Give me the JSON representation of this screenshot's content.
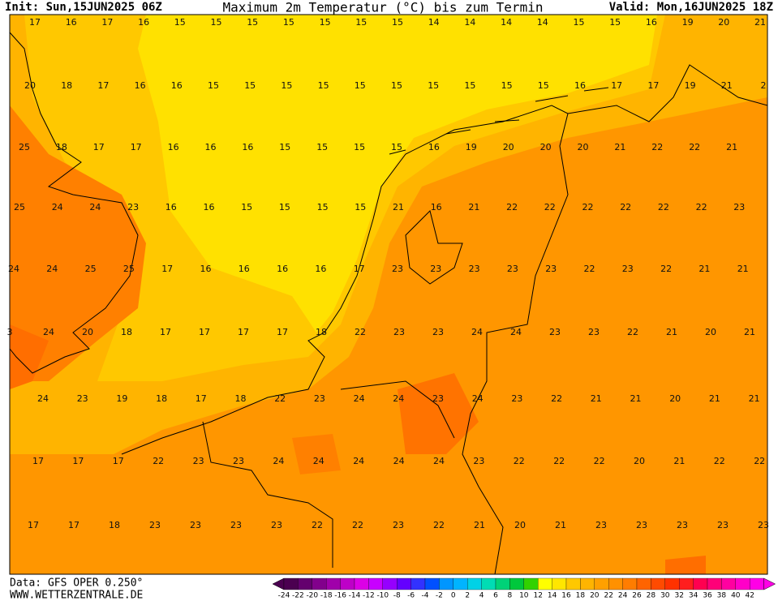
{
  "header": {
    "init": "Init: Sun,15JUN2025 06Z",
    "title": "Maximum 2m Temperatur (°C) bis zum Termin",
    "valid": "Valid: Mon,16JUN2025 18Z"
  },
  "footer": {
    "data": "Data: GFS OPER 0.250°",
    "site": "WWW.WETTERZENTRALE.DE"
  },
  "grid_values": [
    [
      17,
      16,
      17,
      16,
      15,
      15,
      15,
      15,
      15,
      15,
      15,
      14,
      14,
      14,
      14,
      15,
      15,
      16,
      19,
      20,
      21
    ],
    [
      20,
      18,
      17,
      16,
      16,
      15,
      15,
      15,
      15,
      15,
      15,
      15,
      15,
      15,
      15,
      16,
      17,
      17,
      19,
      21,
      2
    ],
    [
      25,
      18,
      17,
      17,
      16,
      16,
      16,
      15,
      15,
      15,
      15,
      16,
      19,
      20,
      20,
      20,
      21,
      22,
      22,
      21
    ],
    [
      25,
      24,
      24,
      23,
      16,
      16,
      15,
      15,
      15,
      15,
      21,
      16,
      21,
      22,
      22,
      22,
      22,
      22,
      22,
      23
    ],
    [
      24,
      24,
      25,
      25,
      17,
      16,
      16,
      16,
      16,
      17,
      23,
      23,
      23,
      23,
      23,
      22,
      23,
      22,
      21,
      21
    ],
    [
      3,
      24,
      20,
      18,
      17,
      17,
      17,
      17,
      18,
      22,
      23,
      23,
      24,
      24,
      23,
      23,
      22,
      21,
      20,
      21
    ],
    [
      24,
      23,
      19,
      18,
      17,
      18,
      22,
      23,
      24,
      24,
      23,
      24,
      23,
      22,
      21,
      21,
      20,
      21,
      21
    ],
    [
      17,
      17,
      17,
      22,
      23,
      23,
      24,
      24,
      24,
      24,
      24,
      23,
      22,
      22,
      22,
      20,
      21,
      22,
      22
    ],
    [
      17,
      17,
      18,
      23,
      23,
      23,
      23,
      22,
      22,
      23,
      22,
      21,
      20,
      21,
      23,
      23,
      23,
      23,
      23
    ]
  ],
  "colorbar": {
    "ticks": [
      -24,
      -22,
      -20,
      -18,
      -16,
      -14,
      -12,
      -10,
      -8,
      -6,
      -4,
      -2,
      0,
      2,
      4,
      6,
      8,
      10,
      12,
      14,
      16,
      18,
      20,
      22,
      24,
      26,
      28,
      30,
      32,
      34,
      36,
      38,
      40,
      42
    ],
    "colors": [
      "#4b0050",
      "#64006e",
      "#82008c",
      "#a000aa",
      "#be00c8",
      "#dc00e6",
      "#c800ff",
      "#9600ff",
      "#6400ff",
      "#3232ff",
      "#0050ff",
      "#0096ff",
      "#00b4ff",
      "#00d2e6",
      "#00dcb4",
      "#00d278",
      "#00c83c",
      "#32d200",
      "#ffff00",
      "#ffe600",
      "#ffc800",
      "#ffb400",
      "#ffa000",
      "#ff9100",
      "#ff7d00",
      "#ff6400",
      "#ff4b00",
      "#ff3200",
      "#ff1e1e",
      "#ff0050",
      "#ff0078",
      "#ff00a0",
      "#ff00c8",
      "#ff00e6"
    ]
  }
}
